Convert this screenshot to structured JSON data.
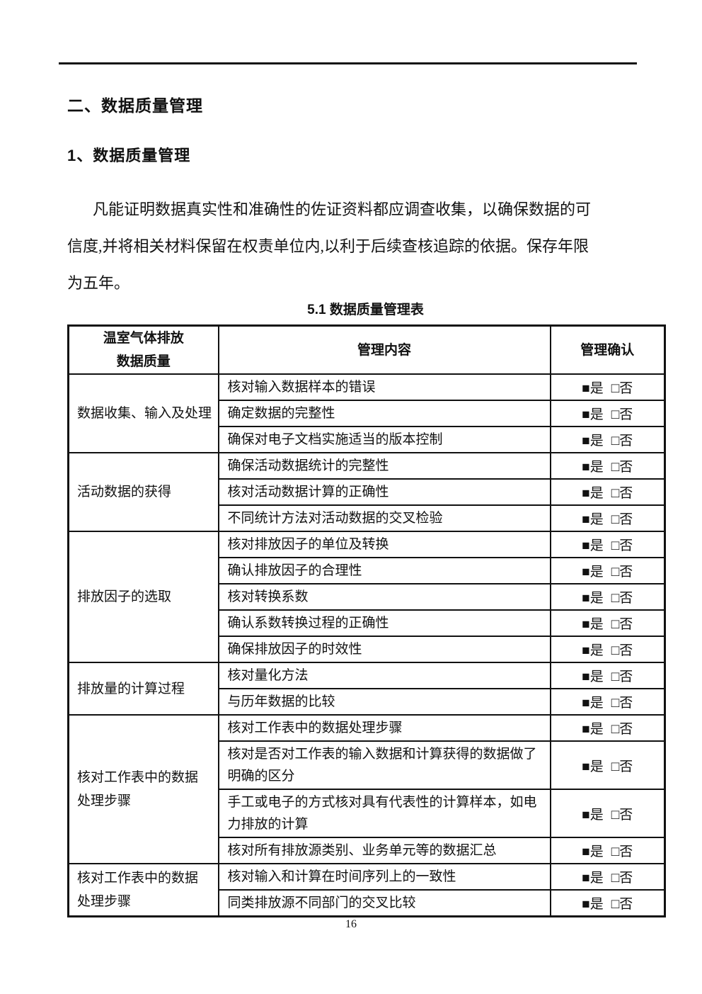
{
  "page": {
    "heading1": "二、数据质量管理",
    "heading2": "1、数据质量管理",
    "paragraph_lines": [
      "凡能证明数据真实性和准确性的佐证资料都应调查收集，以确保数据的可",
      "信度,并将相关材料保留在权责单位内,以利于后续查核追踪的依据。保存年限",
      "为五年。"
    ],
    "table_title": "5.1 数据质量管理表",
    "page_number": "16"
  },
  "table": {
    "header": {
      "col1_lines": [
        "温室气体排放",
        "数据质量"
      ],
      "col2": "管理内容",
      "col3": "管理确认"
    },
    "confirm": {
      "checked_box": "■",
      "yes_label": "是",
      "unchecked_box": "□",
      "no_label": "否"
    },
    "groups": [
      {
        "label_lines": [
          "数据收集、输入及处理"
        ],
        "items": [
          "核对输入数据样本的错误",
          "确定数据的完整性",
          "确保对电子文档实施适当的版本控制"
        ]
      },
      {
        "label_lines": [
          "活动数据的获得"
        ],
        "items": [
          "确保活动数据统计的完整性",
          "核对活动数据计算的正确性",
          "不同统计方法对活动数据的交叉检验"
        ]
      },
      {
        "label_lines": [
          "排放因子的选取"
        ],
        "items": [
          "核对排放因子的单位及转换",
          "确认排放因子的合理性",
          "核对转换系数",
          "确认系数转换过程的正确性",
          "确保排放因子的时效性"
        ]
      },
      {
        "label_lines": [
          "排放量的计算过程"
        ],
        "items": [
          "核对量化方法",
          "与历年数据的比较"
        ]
      },
      {
        "label_lines": [
          "核对工作表中的数据",
          "处理步骤"
        ],
        "items": [
          "核对工作表中的数据处理步骤",
          "核对是否对工作表的输入数据和计算获得的数据做了明确的区分",
          "手工或电子的方式核对具有代表性的计算样本，如电力排放的计算",
          "核对所有排放源类别、业务单元等的数据汇总"
        ]
      },
      {
        "label_lines": [
          "核对工作表中的数据",
          "处理步骤"
        ],
        "items": [
          "核对输入和计算在时间序列上的一致性",
          "同类排放源不同部门的交叉比较"
        ]
      }
    ]
  }
}
